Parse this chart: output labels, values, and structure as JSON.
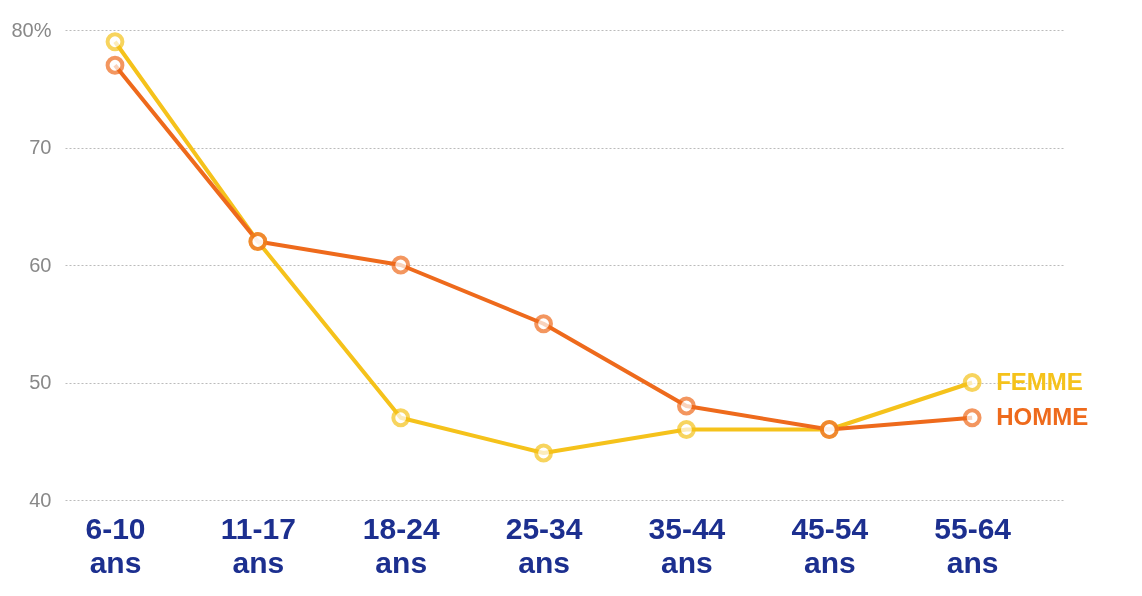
{
  "chart_data": {
    "type": "line",
    "categories": [
      "6-10 ans",
      "11-17 ans",
      "18-24 ans",
      "25-34 ans",
      "35-44 ans",
      "45-54 ans",
      "55-64 ans"
    ],
    "series": [
      {
        "name": "FEMME",
        "color": "#f5c21b",
        "values": [
          79,
          62,
          47,
          44,
          46,
          46,
          50
        ]
      },
      {
        "name": "HOMME",
        "color": "#ee6a1c",
        "values": [
          77,
          62,
          60,
          55,
          48,
          46,
          47
        ]
      }
    ],
    "ylim": [
      40,
      80
    ],
    "yticks": [
      40,
      50,
      60,
      70,
      {
        "value": 80,
        "label": "80%"
      }
    ],
    "grid": "y",
    "marker": "circle",
    "line_style": "solid",
    "legend": "right"
  }
}
